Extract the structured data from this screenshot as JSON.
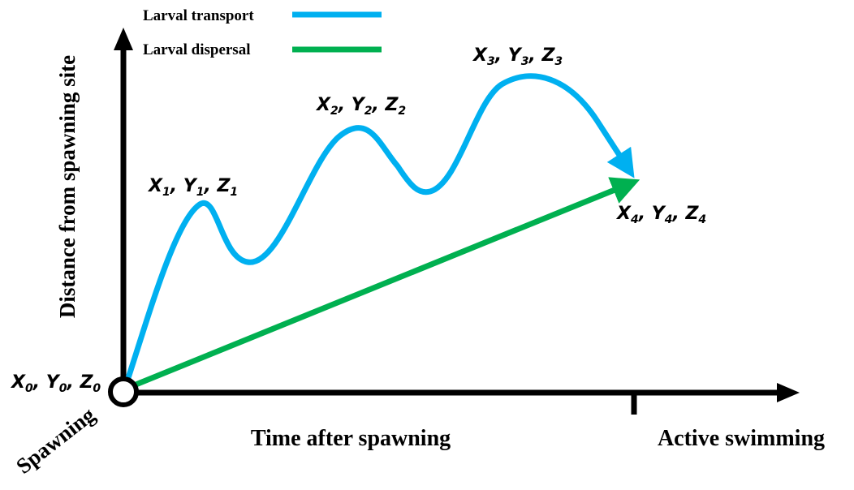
{
  "legend": {
    "transport_label": "Larval transport",
    "dispersal_label": "Larval dispersal"
  },
  "axes": {
    "y_label": "Distance from spawning site",
    "x_label": "Time after spawning",
    "origin_label": "Spawning",
    "x_marker_label": "Active swimming"
  },
  "points": [
    {
      "vars": [
        "X",
        "Y",
        "Z"
      ],
      "sub": "0"
    },
    {
      "vars": [
        "X",
        "Y",
        "Z"
      ],
      "sub": "1"
    },
    {
      "vars": [
        "X",
        "Y",
        "Z"
      ],
      "sub": "2"
    },
    {
      "vars": [
        "X",
        "Y",
        "Z"
      ],
      "sub": "3"
    },
    {
      "vars": [
        "X",
        "Y",
        "Z"
      ],
      "sub": "4"
    }
  ],
  "colors": {
    "transport": "#00B0F0",
    "dispersal": "#00B050",
    "axis": "#000000"
  }
}
